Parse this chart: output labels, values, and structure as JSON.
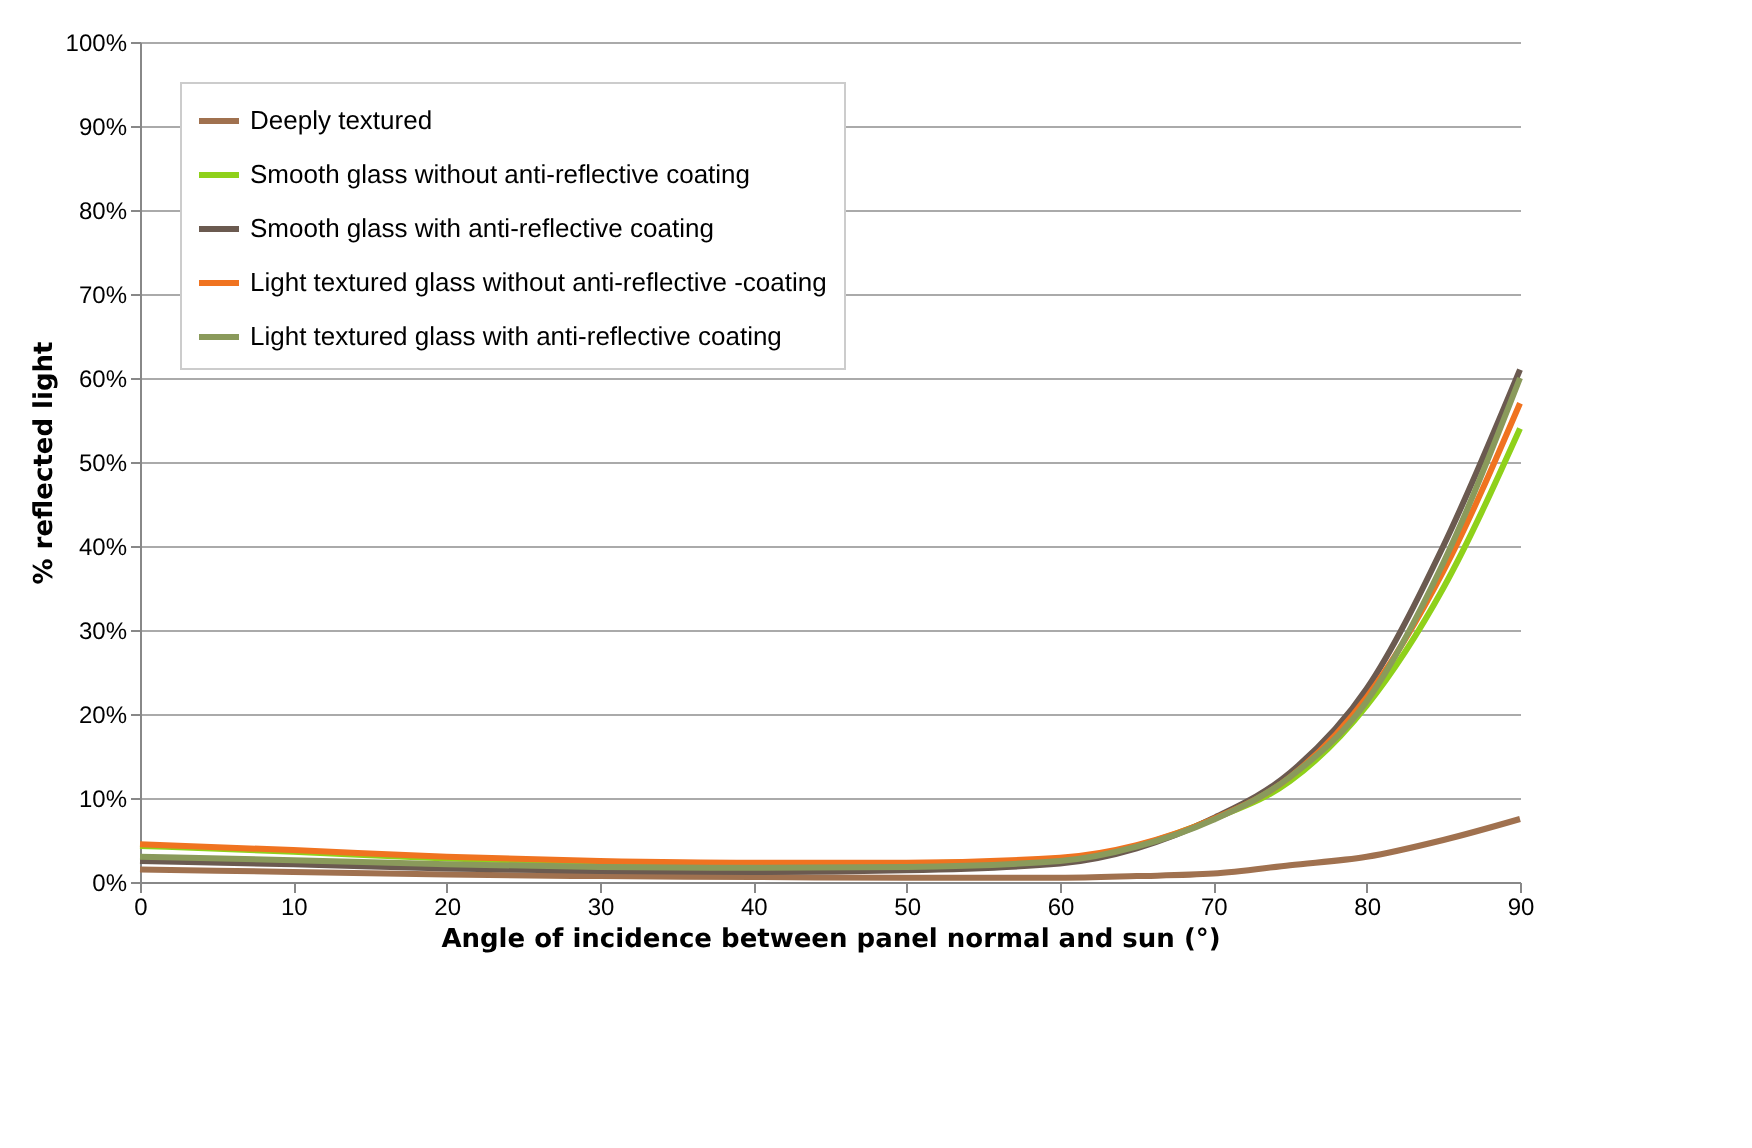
{
  "chart_data": {
    "type": "line",
    "xlabel": "Angle of incidence between panel normal and sun (°)",
    "ylabel": "% reflected light",
    "x": [
      0,
      10,
      20,
      30,
      40,
      50,
      60,
      65,
      70,
      75,
      80,
      85,
      90
    ],
    "series": [
      {
        "name": "Deeply textured",
        "color": "#a0714f",
        "values": [
          1.5,
          1.2,
          0.9,
          0.7,
          0.6,
          0.5,
          0.5,
          0.7,
          1,
          2,
          3,
          5,
          7.5
        ]
      },
      {
        "name": "Smooth glass without anti-reflective coating",
        "color": "#8fd11a",
        "values": [
          4.3,
          3.6,
          2.8,
          2.3,
          2.1,
          2.2,
          2.8,
          4.3,
          7.5,
          12,
          21,
          35,
          54
        ]
      },
      {
        "name": "Smooth glass with anti-reflective coating",
        "color": "#6b5a50",
        "values": [
          2.5,
          2.1,
          1.6,
          1.3,
          1.2,
          1.4,
          2.2,
          4,
          7.6,
          13,
          23,
          40,
          61
        ]
      },
      {
        "name": "Light textured glass without anti-reflective -coating",
        "color": "#f07320",
        "values": [
          4.5,
          3.8,
          3,
          2.5,
          2.3,
          2.3,
          2.9,
          4.4,
          7.5,
          12.5,
          22,
          37,
          57
        ]
      },
      {
        "name": "Light textured glass with anti-reflective coating",
        "color": "#8a9a5b",
        "values": [
          3,
          2.6,
          2.1,
          1.8,
          1.7,
          1.8,
          2.5,
          4.2,
          7.4,
          12.5,
          21.5,
          38,
          60
        ]
      }
    ],
    "xlim": [
      0,
      90
    ],
    "xticks": [
      0,
      10,
      20,
      30,
      40,
      50,
      60,
      70,
      80,
      90
    ],
    "ylim": [
      0,
      100
    ],
    "yticks": [
      {
        "value": 0,
        "label": "0%"
      },
      {
        "value": 10,
        "label": "10%"
      },
      {
        "value": 20,
        "label": "20%"
      },
      {
        "value": 30,
        "label": "30%"
      },
      {
        "value": 40,
        "label": "40%"
      },
      {
        "value": 50,
        "label": "50%"
      },
      {
        "value": 60,
        "label": "60%"
      },
      {
        "value": 70,
        "label": "70%"
      },
      {
        "value": 80,
        "label": "80%"
      },
      {
        "value": 90,
        "label": "90%"
      },
      {
        "value": 100,
        "label": "100%"
      }
    ],
    "grid": "y",
    "legend": "top left",
    "line_style": "solid",
    "marker": "none"
  }
}
